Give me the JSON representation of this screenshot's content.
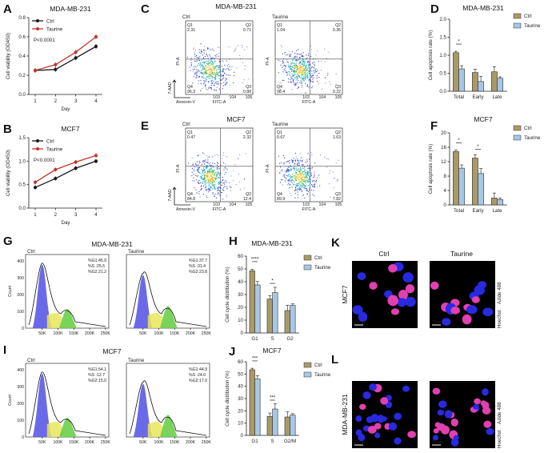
{
  "panels": {
    "A": {
      "letter": "A",
      "title": "MDA-MB-231",
      "ylabel": "Cell viability (OD450)",
      "xlabel": "Day",
      "pvalue": "P<0.0001",
      "legend": [
        "Ctrl",
        "Taurine"
      ]
    },
    "B": {
      "letter": "B",
      "title": "MCF7",
      "ylabel": "Cell viability (OD450)",
      "xlabel": "Day",
      "pvalue": "P<0.0001",
      "legend": [
        "Ctrl",
        "Taurine"
      ]
    },
    "C": {
      "letter": "C",
      "title": "MDA-MB-231",
      "flow": [
        {
          "group": "Ctrl",
          "q1_label": "Q1",
          "q1": "2.31",
          "q2_label": "Q2",
          "q2": "0.71",
          "q3_label": "Q3",
          "q3": "0.88",
          "q4_label": "Q4",
          "q4": "96.3"
        },
        {
          "group": "Taurine",
          "q1_label": "Q1",
          "q1": "1.04",
          "q2_label": "Q2",
          "q2": "0.36",
          "q3_label": "Q3",
          "q3": "0.22",
          "q4_label": "Q4",
          "q4": "98.4"
        }
      ],
      "yaxis": "PI-A",
      "xaxis": "FITC-A",
      "side_y": "7-AAD",
      "side_x": "Annexin-V"
    },
    "E": {
      "letter": "E",
      "title": "MCF7",
      "flow": [
        {
          "group": "Ctrl",
          "q1_label": "Q1",
          "q1": "0.47",
          "q2_label": "Q2",
          "q2": "2.32",
          "q3_label": "Q3",
          "q3": "12.4",
          "q4_label": "Q4",
          "q4": "84.8"
        },
        {
          "group": "Taurine",
          "q1_label": "Q1",
          "q1": "0.67",
          "q2_label": "Q2",
          "q2": "1.63",
          "q3_label": "Q3",
          "q3": "7.82",
          "q4_label": "Q4",
          "q4": "89.9"
        }
      ],
      "yaxis": "PI-A",
      "xaxis": "FITC-A",
      "side_y": "7-AAD",
      "side_x": "Annexin-V"
    },
    "D": {
      "letter": "D",
      "title": "MDA-MB-231",
      "ylabel": "Cell apoptosis rate (%)",
      "legend": [
        "Ctrl",
        "Taurine"
      ],
      "sig": [
        "*"
      ]
    },
    "F": {
      "letter": "F",
      "title": "MCF7",
      "ylabel": "Cell apoptosis rate (%)",
      "legend": [
        "Ctrl",
        "Taurine"
      ],
      "sig": [
        "*",
        "*"
      ]
    },
    "G": {
      "letter": "G",
      "title": "MDA-MB-231",
      "ylabel": "Count",
      "hist": [
        {
          "group": "Ctrl",
          "stats": [
            "%G1:45.9",
            "%S :25.5",
            "%G2:21.2"
          ]
        },
        {
          "group": "Taurine",
          "stats": [
            "%G1:37.7",
            "%S :31.4",
            "%G2:23.8"
          ]
        }
      ]
    },
    "I": {
      "letter": "I",
      "title": "MCF7",
      "ylabel": "Count",
      "hist": [
        {
          "group": "Ctrl",
          "stats": [
            "%G1:54.1",
            "%S :12.7",
            "%G2:15.0"
          ]
        },
        {
          "group": "Taurine",
          "stats": [
            "%G1:44.9",
            "%S :24.0",
            "%G2:17.0"
          ]
        }
      ]
    },
    "H": {
      "letter": "H",
      "title": "MDA-MB-231",
      "ylabel": "Cell cycle distribution (%)",
      "legend": [
        "Ctrl",
        "Taurine"
      ],
      "sig": [
        "****",
        "*"
      ]
    },
    "J": {
      "letter": "J",
      "title": "MCF7",
      "ylabel": "Cell cycle distribution (%)",
      "legend": [
        "Ctrl",
        "Taurine"
      ],
      "sig": [
        "***",
        "***"
      ]
    },
    "K": {
      "letter": "K",
      "cols": [
        "Ctrl",
        "Taurine"
      ],
      "row": "MCF7",
      "side_a": "Hoechst",
      "side_b": "Azide 488",
      "scale": "20um"
    },
    "L": {
      "letter": "L",
      "row": "MDA-MB-231",
      "side_a": "Hoechst",
      "side_b": "Azide 488",
      "scale": "20um"
    }
  },
  "colors": {
    "ctrl_line": "#1a1a1a",
    "taurine_line": "#c0392b",
    "ctrl_bar": "#a99a67",
    "taurine_bar": "#a8c7e6",
    "g1": "#5a5ae6",
    "s": "#e8e85a",
    "g2": "#6ccf4a",
    "nuc_blue": "#2929e0",
    "nuc_pink": "#e040b0"
  },
  "chart_data": [
    {
      "id": "A",
      "type": "line",
      "x": [
        1,
        2,
        3,
        4
      ],
      "xlim": [
        1,
        4
      ],
      "ylim": [
        0.0,
        0.8
      ],
      "yticks": [
        0.0,
        0.2,
        0.4,
        0.6,
        0.8
      ],
      "series": [
        {
          "name": "Ctrl",
          "values": [
            0.25,
            0.26,
            0.38,
            0.5
          ]
        },
        {
          "name": "Taurine",
          "values": [
            0.25,
            0.31,
            0.44,
            0.6
          ]
        }
      ]
    },
    {
      "id": "B",
      "type": "line",
      "x": [
        1,
        2,
        3,
        4
      ],
      "xlim": [
        1,
        4
      ],
      "ylim": [
        0.0,
        1.5
      ],
      "yticks": [
        0.0,
        0.5,
        1.0,
        1.5
      ],
      "series": [
        {
          "name": "Ctrl",
          "values": [
            0.44,
            0.63,
            0.85,
            1.0
          ]
        },
        {
          "name": "Taurine",
          "values": [
            0.55,
            0.82,
            0.98,
            1.12
          ]
        }
      ]
    },
    {
      "id": "D",
      "type": "bar",
      "categories": [
        "Total",
        "Early",
        "Late"
      ],
      "ylim": [
        0,
        2.0
      ],
      "yticks": [
        0.0,
        0.5,
        1.0,
        1.5,
        2.0
      ],
      "series": [
        {
          "name": "Ctrl",
          "values": [
            1.07,
            0.52,
            0.54
          ]
        },
        {
          "name": "Taurine",
          "values": [
            0.62,
            0.27,
            0.36
          ]
        }
      ]
    },
    {
      "id": "F",
      "type": "bar",
      "categories": [
        "Total",
        "Early",
        "Late"
      ],
      "ylim": [
        0,
        20
      ],
      "yticks": [
        0,
        4,
        8,
        12,
        16,
        20
      ],
      "series": [
        {
          "name": "Ctrl",
          "values": [
            14.8,
            13.0,
            1.9
          ]
        },
        {
          "name": "Taurine",
          "values": [
            10.2,
            8.7,
            1.5
          ]
        }
      ]
    },
    {
      "id": "H",
      "type": "bar",
      "categories": [
        "G1",
        "S",
        "G2"
      ],
      "ylim": [
        0,
        60
      ],
      "yticks": [
        0,
        10,
        20,
        30,
        40,
        50,
        60
      ],
      "series": [
        {
          "name": "Ctrl",
          "values": [
            48.5,
            26.5,
            17.5
          ]
        },
        {
          "name": "Taurine",
          "values": [
            37.5,
            31.5,
            21.5
          ]
        }
      ]
    },
    {
      "id": "J",
      "type": "bar",
      "categories": [
        "G1",
        "S",
        "G2/M"
      ],
      "ylim": [
        0,
        60
      ],
      "yticks": [
        0,
        10,
        20,
        30,
        40,
        50,
        60
      ],
      "series": [
        {
          "name": "Ctrl",
          "values": [
            53.5,
            15.5,
            15.0
          ]
        },
        {
          "name": "Taurine",
          "values": [
            46.0,
            21.5,
            16.5
          ]
        }
      ]
    }
  ],
  "histogram_axes": {
    "G": {
      "xticks": [
        "50K",
        "100K",
        "150K",
        "200K",
        "250K"
      ],
      "yticks": [
        "0",
        "100",
        "200",
        "300",
        "400"
      ]
    },
    "I": {
      "xticks": [
        "50K",
        "100K",
        "150K",
        "200K",
        "250K"
      ],
      "yticks": [
        "0",
        "100",
        "200",
        "300",
        "400"
      ]
    }
  },
  "flow_axes": {
    "xticks": [
      "0",
      "10^3",
      "10^4",
      "10^5"
    ],
    "yticks": [
      "0",
      "10^3",
      "10^4",
      "10^5"
    ]
  }
}
